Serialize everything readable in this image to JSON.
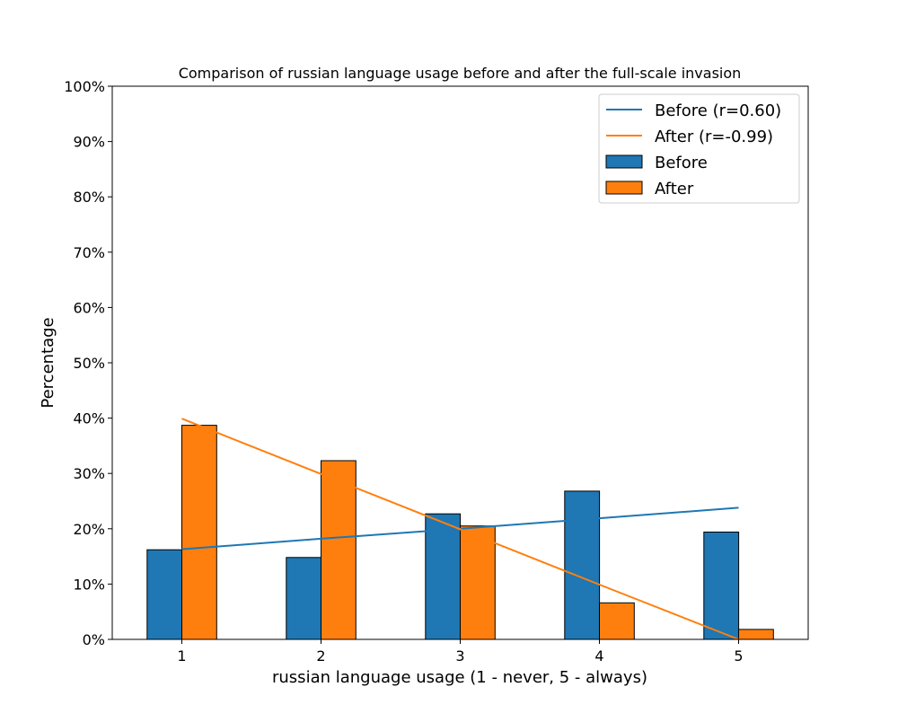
{
  "chart_data": {
    "type": "bar",
    "title": "Comparison of russian language usage before and after the full-scale invasion",
    "xlabel": "russian language usage (1 - never, 5 - always)",
    "ylabel": "Percentage",
    "categories": [
      "1",
      "2",
      "3",
      "4",
      "5"
    ],
    "ylim": [
      0,
      100
    ],
    "yticks": [
      "0%",
      "10%",
      "20%",
      "30%",
      "40%",
      "50%",
      "60%",
      "70%",
      "80%",
      "90%",
      "100%"
    ],
    "grid": false,
    "legend_position": "top-right",
    "series": [
      {
        "name": "Before",
        "kind": "bar",
        "color": "#1f77b4",
        "values": [
          16.2,
          14.8,
          22.7,
          26.8,
          19.4
        ]
      },
      {
        "name": "After",
        "kind": "bar",
        "color": "#ff7f0e",
        "values": [
          38.7,
          32.3,
          20.5,
          6.6,
          1.8
        ]
      }
    ],
    "trendlines": [
      {
        "name": "Before (r=0.60)",
        "color": "#1f77b4",
        "values": [
          16.3,
          18.2,
          20.0,
          21.9,
          23.8
        ]
      },
      {
        "name": "After (r=-0.99)",
        "color": "#ff7f0e",
        "values": [
          39.9,
          29.9,
          19.9,
          9.9,
          0.0
        ]
      }
    ]
  }
}
